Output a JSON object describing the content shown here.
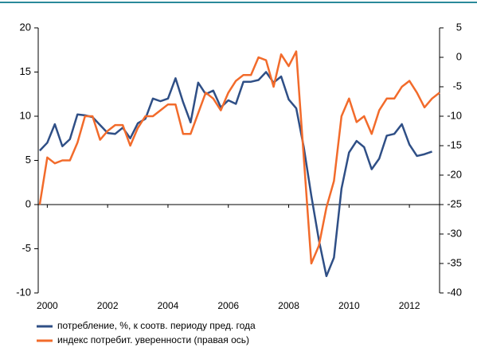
{
  "chart_data": {
    "type": "line",
    "x": [
      1999.75,
      2000,
      2000.25,
      2000.5,
      2000.75,
      2001,
      2001.25,
      2001.5,
      2001.75,
      2002,
      2002.25,
      2002.5,
      2002.75,
      2003,
      2003.25,
      2003.5,
      2003.75,
      2004,
      2004.25,
      2004.5,
      2004.75,
      2005,
      2005.25,
      2005.5,
      2005.75,
      2006,
      2006.25,
      2006.5,
      2006.75,
      2007,
      2007.25,
      2007.5,
      2007.75,
      2008,
      2008.25,
      2008.5,
      2008.75,
      2009,
      2009.25,
      2009.5,
      2009.75,
      2010,
      2010.25,
      2010.5,
      2010.75,
      2011,
      2011.25,
      2011.5,
      2011.75,
      2012,
      2012.25,
      2012.5,
      2012.75,
      2013
    ],
    "series": [
      {
        "name": "потребление, %, к соотв. периоду пред. года",
        "color": "#2f4f86",
        "values": [
          6.1,
          7.0,
          9.1,
          6.6,
          7.4,
          10.2,
          10.1,
          9.9,
          9.0,
          8.1,
          8.0,
          8.7,
          7.5,
          9.2,
          9.7,
          12.0,
          11.7,
          12.0,
          14.3,
          11.6,
          9.3,
          13.8,
          12.5,
          12.9,
          11.0,
          11.8,
          11.4,
          13.9,
          13.9,
          14.1,
          15.0,
          13.8,
          14.5,
          11.9,
          10.9,
          6.5,
          1.0,
          -4.0,
          -8.1,
          -6.0,
          1.8,
          5.9,
          7.2,
          6.5,
          4.0,
          5.2,
          7.8,
          8.0,
          9.1,
          6.8,
          5.5,
          5.7,
          6.0,
          null
        ]
      },
      {
        "name": "индекс потребит. уверенности (правая ось)",
        "color": "#f26b2b",
        "axis": "y2",
        "values": [
          -25,
          -17,
          -18,
          -17.5,
          -17.5,
          -14.5,
          -10,
          -10,
          -14,
          -12.5,
          -11.5,
          -11.5,
          -15,
          -12,
          -10,
          -10,
          -9,
          -8,
          -8,
          -13,
          -13,
          -9.5,
          -6,
          -7,
          -9,
          -6,
          -4,
          -3,
          -3,
          0,
          -0.5,
          -5,
          0.5,
          -1.5,
          1,
          -17,
          -35,
          -32,
          -25.5,
          -21,
          -10,
          -7,
          -11,
          -10,
          -13,
          -9,
          -7,
          -7,
          -5,
          -4,
          -6,
          -8.5,
          -7,
          -6
        ]
      }
    ],
    "xlim": [
      1999.7,
      2013.0
    ],
    "xticks": [
      2000,
      2002,
      2004,
      2006,
      2008,
      2010,
      2012
    ],
    "ylim": [
      -10,
      20
    ],
    "yticks": [
      -10,
      -5,
      0,
      5,
      10,
      15,
      20
    ],
    "y2lim": [
      -40,
      5
    ],
    "y2ticks": [
      -40,
      -35,
      -30,
      -25,
      -20,
      -15,
      -10,
      -5,
      0,
      5
    ]
  }
}
